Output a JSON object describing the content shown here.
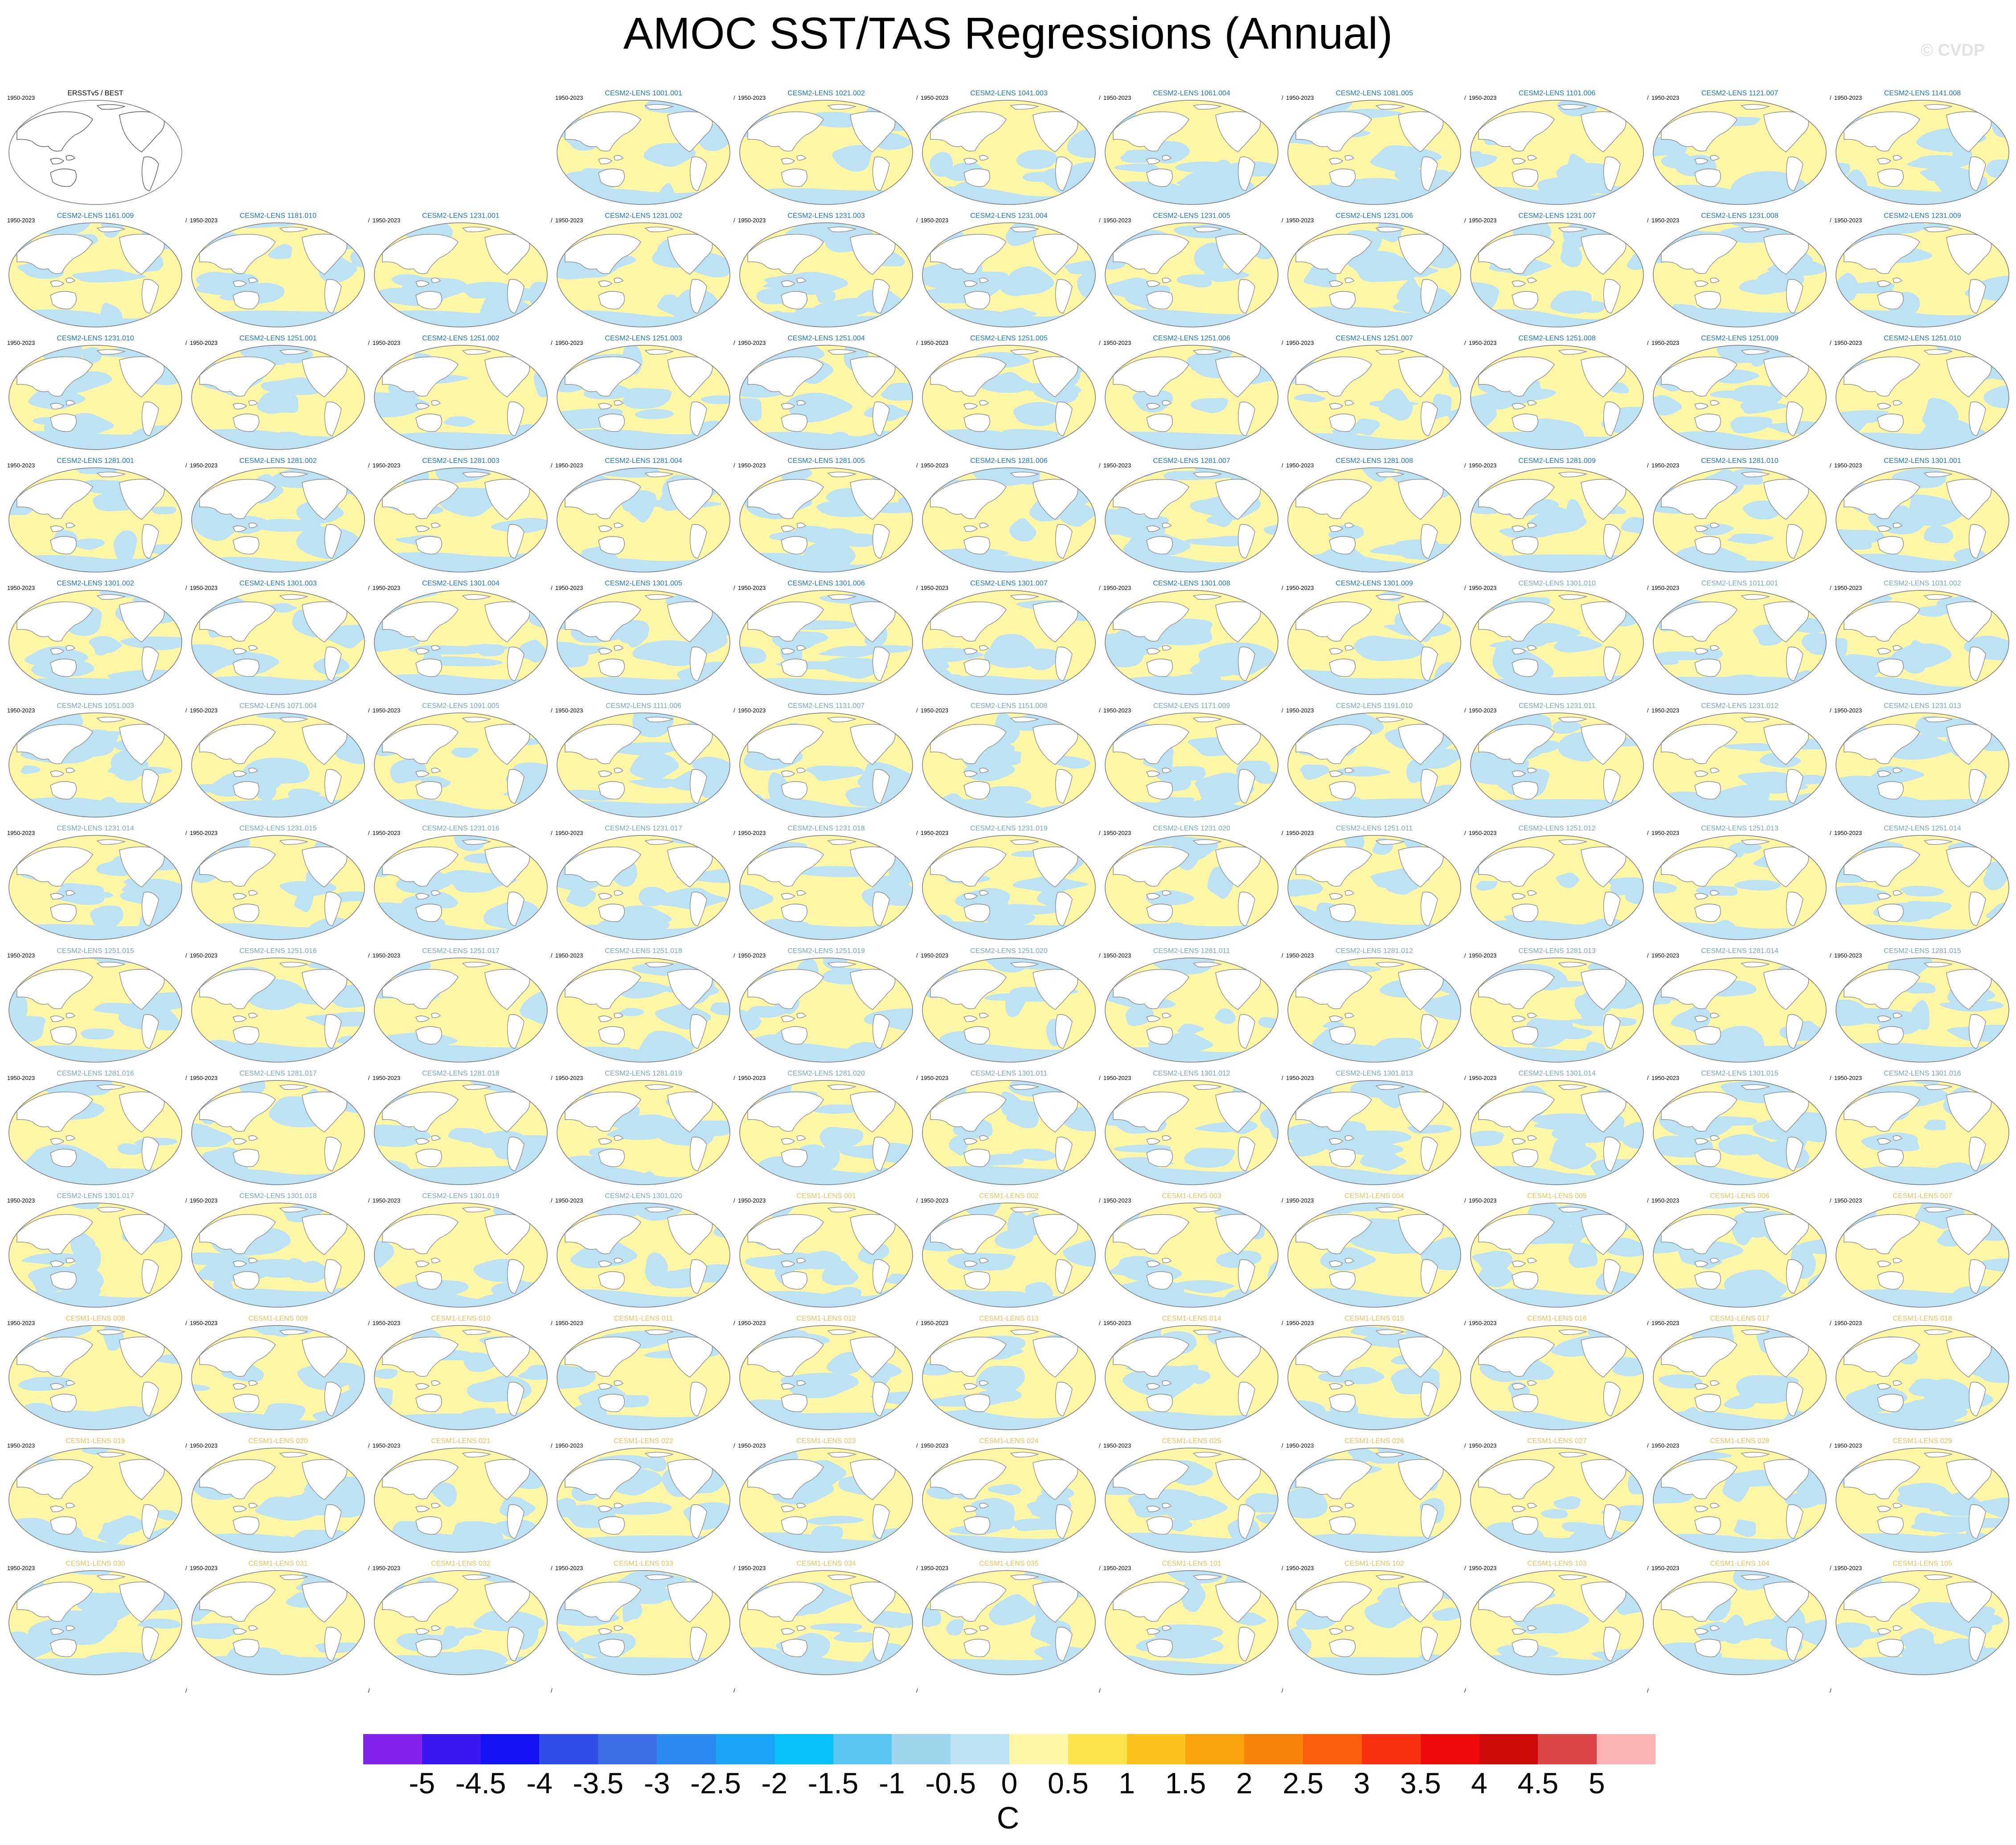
{
  "title": "AMOC SST/TAS Regressions (Annual)",
  "watermark": "© CVDP",
  "period": "1950-2023",
  "reference_panel": {
    "title": "ERSSTv5 / BEST",
    "color": "#000000"
  },
  "colors": {
    "cesm2_title": "#1f77b4",
    "cesm2_smbb_title": "#7ba7b0",
    "cesm1_title": "#e6c35c",
    "ocean_positive": "#fff7a6",
    "ocean_negative": "#bde2f4",
    "coast": "#8c8c8c"
  },
  "members": [
    "CESM2-LENS 1001.001",
    "CESM2-LENS 1021.002",
    "CESM2-LENS 1041.003",
    "CESM2-LENS 1061.004",
    "CESM2-LENS 1081.005",
    "CESM2-LENS 1101.006",
    "CESM2-LENS 1121.007",
    "CESM2-LENS 1141.008",
    "CESM2-LENS 1161.009",
    "CESM2-LENS 1181.010",
    "CESM2-LENS 1231.001",
    "CESM2-LENS 1231.002",
    "CESM2-LENS 1231.003",
    "CESM2-LENS 1231.004",
    "CESM2-LENS 1231.005",
    "CESM2-LENS 1231.006",
    "CESM2-LENS 1231.007",
    "CESM2-LENS 1231.008",
    "CESM2-LENS 1231.009",
    "CESM2-LENS 1231.010",
    "CESM2-LENS 1251.001",
    "CESM2-LENS 1251.002",
    "CESM2-LENS 1251.003",
    "CESM2-LENS 1251.004",
    "CESM2-LENS 1251.005",
    "CESM2-LENS 1251.006",
    "CESM2-LENS 1251.007",
    "CESM2-LENS 1251.008",
    "CESM2-LENS 1251.009",
    "CESM2-LENS 1251.010",
    "CESM2-LENS 1281.001",
    "CESM2-LENS 1281.002",
    "CESM2-LENS 1281.003",
    "CESM2-LENS 1281.004",
    "CESM2-LENS 1281.005",
    "CESM2-LENS 1281.006",
    "CESM2-LENS 1281.007",
    "CESM2-LENS 1281.008",
    "CESM2-LENS 1281.009",
    "CESM2-LENS 1281.010",
    "CESM2-LENS 1301.001",
    "CESM2-LENS 1301.002",
    "CESM2-LENS 1301.003",
    "CESM2-LENS 1301.004",
    "CESM2-LENS 1301.005",
    "CESM2-LENS 1301.006",
    "CESM2-LENS 1301.007",
    "CESM2-LENS 1301.008",
    "CESM2-LENS 1301.009",
    "CESM2-LENS 1301.010",
    "CESM2-LENS 1011.001",
    "CESM2-LENS 1031.002",
    "CESM2-LENS 1051.003",
    "CESM2-LENS 1071.004",
    "CESM2-LENS 1091.005",
    "CESM2-LENS 1111.006",
    "CESM2-LENS 1131.007",
    "CESM2-LENS 1151.008",
    "CESM2-LENS 1171.009",
    "CESM2-LENS 1191.010",
    "CESM2-LENS 1231.011",
    "CESM2-LENS 1231.012",
    "CESM2-LENS 1231.013",
    "CESM2-LENS 1231.014",
    "CESM2-LENS 1231.015",
    "CESM2-LENS 1231.016",
    "CESM2-LENS 1231.017",
    "CESM2-LENS 1231.018",
    "CESM2-LENS 1231.019",
    "CESM2-LENS 1231.020",
    "CESM2-LENS 1251.011",
    "CESM2-LENS 1251.012",
    "CESM2-LENS 1251.013",
    "CESM2-LENS 1251.014",
    "CESM2-LENS 1251.015",
    "CESM2-LENS 1251.016",
    "CESM2-LENS 1251.017",
    "CESM2-LENS 1251.018",
    "CESM2-LENS 1251.019",
    "CESM2-LENS 1251.020",
    "CESM2-LENS 1281.011",
    "CESM2-LENS 1281.012",
    "CESM2-LENS 1281.013",
    "CESM2-LENS 1281.014",
    "CESM2-LENS 1281.015",
    "CESM2-LENS 1281.016",
    "CESM2-LENS 1281.017",
    "CESM2-LENS 1281.018",
    "CESM2-LENS 1281.019",
    "CESM2-LENS 1281.020",
    "CESM2-LENS 1301.011",
    "CESM2-LENS 1301.012",
    "CESM2-LENS 1301.013",
    "CESM2-LENS 1301.014",
    "CESM2-LENS 1301.015",
    "CESM2-LENS 1301.016",
    "CESM2-LENS 1301.017",
    "CESM2-LENS 1301.018",
    "CESM2-LENS 1301.019",
    "CESM2-LENS 1301.020",
    "CESM1-LENS 001",
    "CESM1-LENS 002",
    "CESM1-LENS 003",
    "CESM1-LENS 004",
    "CESM1-LENS 005",
    "CESM1-LENS 006",
    "CESM1-LENS 007",
    "CESM1-LENS 008",
    "CESM1-LENS 009",
    "CESM1-LENS 010",
    "CESM1-LENS 011",
    "CESM1-LENS 012",
    "CESM1-LENS 013",
    "CESM1-LENS 014",
    "CESM1-LENS 015",
    "CESM1-LENS 016",
    "CESM1-LENS 017",
    "CESM1-LENS 018",
    "CESM1-LENS 019",
    "CESM1-LENS 020",
    "CESM1-LENS 021",
    "CESM1-LENS 022",
    "CESM1-LENS 023",
    "CESM1-LENS 024",
    "CESM1-LENS 025",
    "CESM1-LENS 026",
    "CESM1-LENS 027",
    "CESM1-LENS 028",
    "CESM1-LENS 029",
    "CESM1-LENS 030",
    "CESM1-LENS 031",
    "CESM1-LENS 032",
    "CESM1-LENS 033",
    "CESM1-LENS 034",
    "CESM1-LENS 035",
    "CESM1-LENS 101",
    "CESM1-LENS 102",
    "CESM1-LENS 103",
    "CESM1-LENS 104",
    "CESM1-LENS 105"
  ],
  "colorbar": {
    "colors": [
      "#8224ee",
      "#3a18f2",
      "#1212f2",
      "#2f4ee8",
      "#3b6de6",
      "#2c8af3",
      "#1aa4f4",
      "#06c0f7",
      "#58c4f1",
      "#9fd4ef",
      "#bde2f4",
      "#fff7a6",
      "#fde24a",
      "#fbc21b",
      "#f9a20c",
      "#f98209",
      "#f95f0b",
      "#f9300f",
      "#ef0b0b",
      "#cc0a0a",
      "#dc4545",
      "#fdb3b3"
    ],
    "labels": [
      "-5",
      "-4.5",
      "-4",
      "-3.5",
      "-3",
      "-2.5",
      "-2",
      "-1.5",
      "-1",
      "-0.5",
      "0",
      "0.5",
      "1",
      "1.5",
      "2",
      "2.5",
      "3",
      "3.5",
      "4",
      "4.5",
      "5"
    ],
    "units": "C"
  }
}
